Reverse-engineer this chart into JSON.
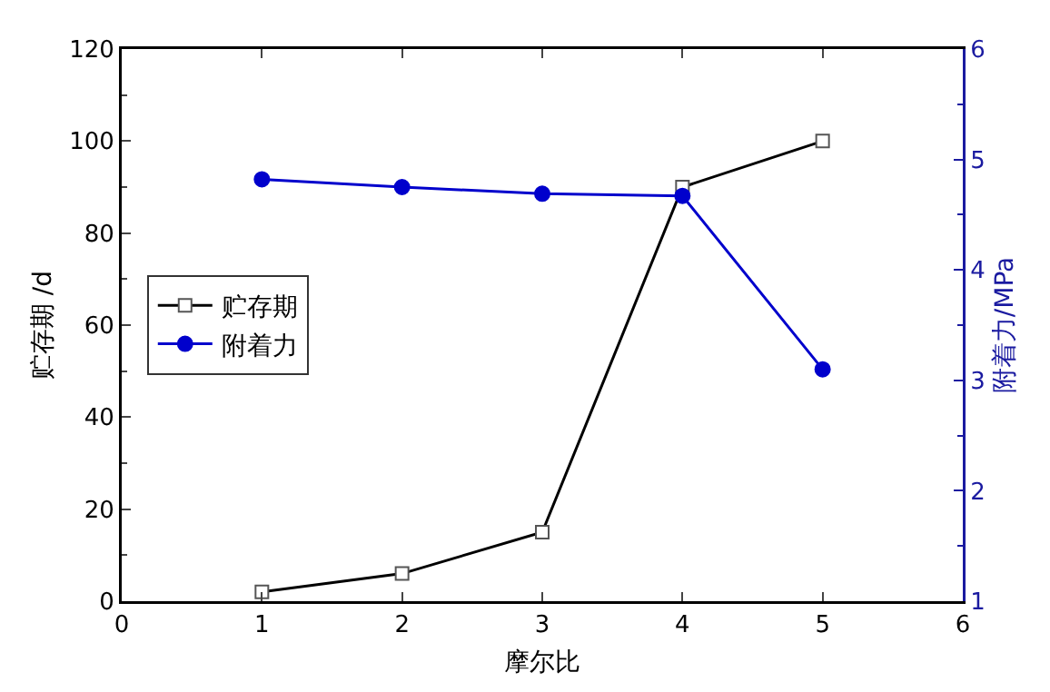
{
  "chart_data": {
    "type": "line",
    "xlabel": "摩尔比",
    "ylabel": "贮存期 /d",
    "y2label": "附着力/MPa",
    "x": [
      1,
      2,
      3,
      4,
      5
    ],
    "series": [
      {
        "name": "贮存期",
        "color": "#000000",
        "marker": "square",
        "values": [
          2,
          6,
          15,
          90,
          100
        ]
      },
      {
        "name": "附着力",
        "color": "#0000cc",
        "marker": "circle",
        "axis": "y2",
        "values": [
          4.82,
          4.75,
          4.69,
          4.67,
          3.1
        ]
      }
    ],
    "xlim": [
      0,
      6
    ],
    "xticks": [
      0,
      1,
      2,
      3,
      4,
      5,
      6
    ],
    "ylim": [
      0,
      120
    ],
    "yticks": [
      0,
      20,
      40,
      60,
      80,
      100,
      120
    ],
    "y2lim": [
      1,
      6
    ],
    "y2ticks": [
      1,
      2,
      3,
      4,
      5,
      6
    ],
    "grid": false,
    "legend": "left",
    "line_style": "solid"
  }
}
